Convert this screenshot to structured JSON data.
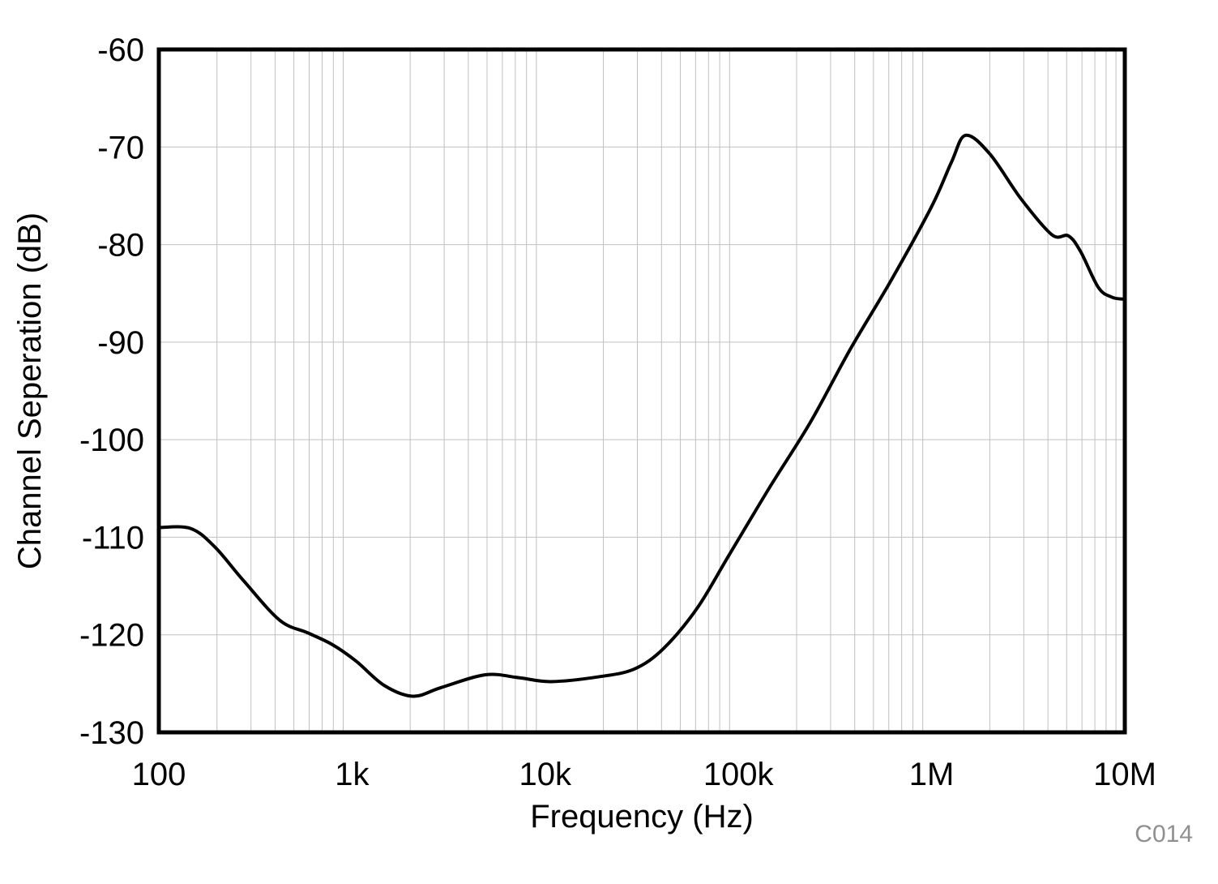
{
  "chart_data": {
    "type": "line",
    "title": "",
    "xlabel": "Frequency (Hz)",
    "ylabel": "Channel Seperation (dB)",
    "x_scale": "log",
    "xlim": [
      100,
      10000000
    ],
    "ylim": [
      -130,
      -60
    ],
    "x_ticks": [
      100,
      1000,
      10000,
      100000,
      1000000,
      10000000
    ],
    "x_tick_labels": [
      "100",
      "1k",
      "10k",
      "100k",
      "1M",
      "10M"
    ],
    "y_ticks": [
      -60,
      -70,
      -80,
      -90,
      -100,
      -110,
      -120,
      -130
    ],
    "y_tick_labels": [
      "-60",
      "-70",
      "-80",
      "-90",
      "-100",
      "-110",
      "-120",
      "-130"
    ],
    "grid": true,
    "legend": "none",
    "line_color": "#000000",
    "grid_color": "#c0c0c0",
    "series": [
      {
        "x": [
          100,
          146,
          195,
          273,
          422,
          590,
          790,
          1050,
          1470,
          2070,
          2900,
          4900,
          7300,
          10700,
          19000,
          29000,
          41000,
          61000,
          89000,
          146000,
          236000,
          380000,
          620000,
          1000000,
          1270000,
          1500000,
          2000000,
          2900000,
          4200000,
          5100000,
          5900000,
          7300000,
          8600000,
          10000000
        ],
        "y": [
          -109.0,
          -109.1,
          -111.0,
          -114.4,
          -118.5,
          -119.8,
          -121.0,
          -122.7,
          -125.2,
          -126.3,
          -125.4,
          -124.1,
          -124.4,
          -124.8,
          -124.3,
          -123.5,
          -121.4,
          -117.3,
          -111.9,
          -104.8,
          -98.2,
          -90.7,
          -83.6,
          -76.1,
          -71.5,
          -68.8,
          -70.7,
          -75.3,
          -79.0,
          -79.1,
          -80.7,
          -84.4,
          -85.4,
          -85.6
        ]
      }
    ]
  },
  "watermark": "C014"
}
